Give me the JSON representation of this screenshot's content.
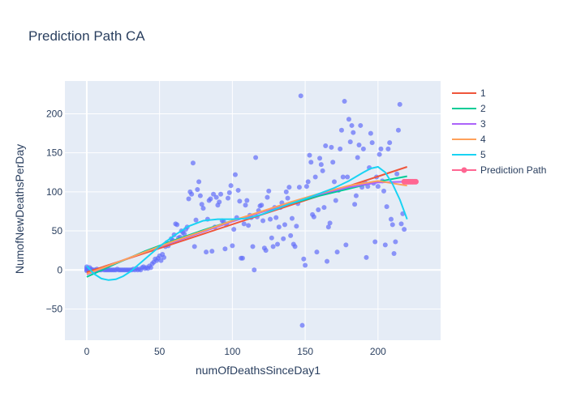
{
  "chart_data": {
    "type": "scatter",
    "title": "Prediction Path CA",
    "xlabel": "numOfDeathsSinceDay1",
    "ylabel": "NumofNewDeathsPerDay",
    "xlim": [
      -15,
      243
    ],
    "ylim": [
      -90,
      242
    ],
    "x_ticks": [
      0,
      50,
      100,
      150,
      200
    ],
    "y_ticks": [
      -50,
      0,
      50,
      100,
      150,
      200
    ],
    "grid": true,
    "legend_position": "top-right",
    "scatter_color": "#636efa",
    "points": [
      [
        0,
        0
      ],
      [
        0,
        2
      ],
      [
        0,
        4
      ],
      [
        0,
        -1
      ],
      [
        1,
        1
      ],
      [
        1,
        0
      ],
      [
        2,
        0
      ],
      [
        2,
        3
      ],
      [
        3,
        0
      ],
      [
        3,
        1
      ],
      [
        4,
        0
      ],
      [
        5,
        0
      ],
      [
        6,
        0
      ],
      [
        7,
        1
      ],
      [
        8,
        0
      ],
      [
        9,
        0
      ],
      [
        10,
        0
      ],
      [
        11,
        1
      ],
      [
        12,
        0
      ],
      [
        13,
        0
      ],
      [
        14,
        0
      ],
      [
        15,
        0
      ],
      [
        16,
        0
      ],
      [
        17,
        0
      ],
      [
        18,
        0
      ],
      [
        19,
        0
      ],
      [
        20,
        0
      ],
      [
        21,
        1
      ],
      [
        22,
        0
      ],
      [
        23,
        0
      ],
      [
        24,
        0
      ],
      [
        25,
        0
      ],
      [
        26,
        0
      ],
      [
        27,
        0
      ],
      [
        28,
        0
      ],
      [
        29,
        0
      ],
      [
        30,
        0
      ],
      [
        31,
        0
      ],
      [
        32,
        1
      ],
      [
        33,
        0
      ],
      [
        34,
        2
      ],
      [
        35,
        0
      ],
      [
        36,
        1
      ],
      [
        37,
        0
      ],
      [
        38,
        3
      ],
      [
        39,
        4
      ],
      [
        40,
        2
      ],
      [
        41,
        3
      ],
      [
        42,
        2
      ],
      [
        43,
        5
      ],
      [
        44,
        3
      ],
      [
        45,
        8
      ],
      [
        46,
        10
      ],
      [
        47,
        14
      ],
      [
        48,
        12
      ],
      [
        49,
        15
      ],
      [
        50,
        18
      ],
      [
        51,
        12
      ],
      [
        52,
        20
      ],
      [
        53,
        16
      ],
      [
        54,
        30
      ],
      [
        55,
        35
      ],
      [
        56,
        31
      ],
      [
        58,
        40
      ],
      [
        59,
        38
      ],
      [
        60,
        45
      ],
      [
        61,
        59
      ],
      [
        62,
        58
      ],
      [
        63,
        41
      ],
      [
        64,
        42
      ],
      [
        65,
        50
      ],
      [
        66,
        48
      ],
      [
        67,
        46
      ],
      [
        68,
        52
      ],
      [
        69,
        55
      ],
      [
        70,
        91
      ],
      [
        71,
        100
      ],
      [
        72,
        97
      ],
      [
        73,
        137
      ],
      [
        74,
        30
      ],
      [
        75,
        64
      ],
      [
        76,
        103
      ],
      [
        77,
        113
      ],
      [
        78,
        95
      ],
      [
        79,
        84
      ],
      [
        80,
        79
      ],
      [
        82,
        23
      ],
      [
        83,
        65
      ],
      [
        84,
        89
      ],
      [
        85,
        91
      ],
      [
        86,
        24
      ],
      [
        87,
        97
      ],
      [
        88,
        55
      ],
      [
        89,
        93
      ],
      [
        90,
        83
      ],
      [
        91,
        87
      ],
      [
        92,
        97
      ],
      [
        93,
        63
      ],
      [
        94,
        62
      ],
      [
        95,
        27
      ],
      [
        96,
        58
      ],
      [
        97,
        92
      ],
      [
        98,
        99
      ],
      [
        99,
        108
      ],
      [
        100,
        31
      ],
      [
        101,
        52
      ],
      [
        102,
        122
      ],
      [
        103,
        67
      ],
      [
        104,
        102
      ],
      [
        105,
        88
      ],
      [
        106,
        15
      ],
      [
        107,
        15
      ],
      [
        108,
        59
      ],
      [
        109,
        83
      ],
      [
        110,
        89
      ],
      [
        111,
        57
      ],
      [
        112,
        70
      ],
      [
        113,
        67
      ],
      [
        114,
        30
      ],
      [
        115,
        0
      ],
      [
        116,
        144
      ],
      [
        117,
        68
      ],
      [
        118,
        76
      ],
      [
        119,
        82
      ],
      [
        120,
        83
      ],
      [
        121,
        63
      ],
      [
        122,
        28
      ],
      [
        123,
        25
      ],
      [
        124,
        93
      ],
      [
        125,
        101
      ],
      [
        126,
        65
      ],
      [
        127,
        41
      ],
      [
        128,
        30
      ],
      [
        129,
        80
      ],
      [
        130,
        67
      ],
      [
        131,
        33
      ],
      [
        132,
        55
      ],
      [
        133,
        80
      ],
      [
        134,
        86
      ],
      [
        135,
        40
      ],
      [
        136,
        58
      ],
      [
        137,
        100
      ],
      [
        138,
        92
      ],
      [
        139,
        106
      ],
      [
        140,
        44
      ],
      [
        141,
        66
      ],
      [
        142,
        33
      ],
      [
        143,
        30
      ],
      [
        144,
        56
      ],
      [
        145,
        85
      ],
      [
        146,
        106
      ],
      [
        147,
        223
      ],
      [
        148,
        -71
      ],
      [
        149,
        14
      ],
      [
        150,
        6
      ],
      [
        151,
        107
      ],
      [
        152,
        113
      ],
      [
        153,
        147
      ],
      [
        154,
        138
      ],
      [
        155,
        71
      ],
      [
        156,
        68
      ],
      [
        157,
        119
      ],
      [
        158,
        23
      ],
      [
        159,
        77
      ],
      [
        160,
        143
      ],
      [
        161,
        135
      ],
      [
        162,
        127
      ],
      [
        163,
        80
      ],
      [
        164,
        159
      ],
      [
        165,
        11
      ],
      [
        166,
        55
      ],
      [
        167,
        60
      ],
      [
        168,
        157
      ],
      [
        169,
        138
      ],
      [
        170,
        113
      ],
      [
        171,
        89
      ],
      [
        172,
        23
      ],
      [
        173,
        102
      ],
      [
        174,
        155
      ],
      [
        175,
        179
      ],
      [
        176,
        119
      ],
      [
        177,
        216
      ],
      [
        178,
        32
      ],
      [
        179,
        119
      ],
      [
        180,
        193
      ],
      [
        181,
        164
      ],
      [
        182,
        185
      ],
      [
        183,
        176
      ],
      [
        184,
        84
      ],
      [
        185,
        95
      ],
      [
        186,
        144
      ],
      [
        187,
        160
      ],
      [
        188,
        185
      ],
      [
        189,
        106
      ],
      [
        190,
        155
      ],
      [
        191,
        112
      ],
      [
        192,
        16
      ],
      [
        193,
        107
      ],
      [
        194,
        131
      ],
      [
        195,
        175
      ],
      [
        196,
        163
      ],
      [
        197,
        111
      ],
      [
        198,
        36
      ],
      [
        199,
        119
      ],
      [
        200,
        107
      ],
      [
        201,
        148
      ],
      [
        202,
        155
      ],
      [
        203,
        114
      ],
      [
        204,
        101
      ],
      [
        205,
        32
      ],
      [
        206,
        81
      ],
      [
        207,
        155
      ],
      [
        208,
        163
      ],
      [
        209,
        65
      ],
      [
        210,
        58
      ],
      [
        211,
        21
      ],
      [
        212,
        36
      ],
      [
        213,
        123
      ],
      [
        214,
        179
      ],
      [
        215,
        212
      ],
      [
        216,
        59
      ],
      [
        217,
        72
      ],
      [
        218,
        52
      ]
    ],
    "series": [
      {
        "name": "1",
        "color": "#ef553b",
        "x": [
          0,
          220
        ],
        "y": [
          -3,
          132
        ]
      },
      {
        "name": "2",
        "color": "#00cc96",
        "x": [
          0,
          20,
          40,
          60,
          80,
          100,
          120,
          140,
          160,
          180,
          200,
          220
        ],
        "y": [
          -9,
          8,
          24,
          38,
          51,
          63,
          74,
          85,
          95,
          104,
          113,
          120
        ]
      },
      {
        "name": "3",
        "color": "#ab63fa",
        "x": [
          0,
          20,
          40,
          60,
          80,
          100,
          120,
          140,
          160,
          180,
          200,
          220
        ],
        "y": [
          -6,
          9,
          23,
          36,
          49,
          62,
          74,
          86,
          97,
          106,
          112,
          113
        ]
      },
      {
        "name": "4",
        "color": "#ffa15a",
        "x": [
          0,
          20,
          40,
          60,
          80,
          100,
          120,
          140,
          160,
          180,
          200,
          220
        ],
        "y": [
          -5,
          9,
          23,
          37,
          50,
          63,
          75,
          87,
          98,
          108,
          114,
          108
        ]
      },
      {
        "name": "5",
        "color": "#19d3f3",
        "x": [
          0,
          5,
          10,
          15,
          20,
          25,
          30,
          40,
          50,
          60,
          70,
          80,
          90,
          100,
          110,
          120,
          130,
          140,
          150,
          160,
          170,
          180,
          190,
          195,
          200,
          205,
          210,
          215,
          220
        ],
        "y": [
          5,
          -5,
          -11,
          -13,
          -12,
          -8,
          -2,
          14,
          30,
          44,
          56,
          63,
          65,
          65,
          66,
          71,
          78,
          85,
          91,
          98,
          105,
          114,
          125,
          130,
          132,
          125,
          110,
          90,
          65
        ]
      }
    ],
    "prediction_path": {
      "name": "Prediction Path",
      "color": "#ff6692",
      "x": [
        218,
        219,
        220,
        221,
        222,
        223,
        224,
        225,
        226
      ],
      "y": [
        113,
        113,
        113,
        113,
        113,
        113,
        113,
        113,
        113
      ]
    }
  }
}
